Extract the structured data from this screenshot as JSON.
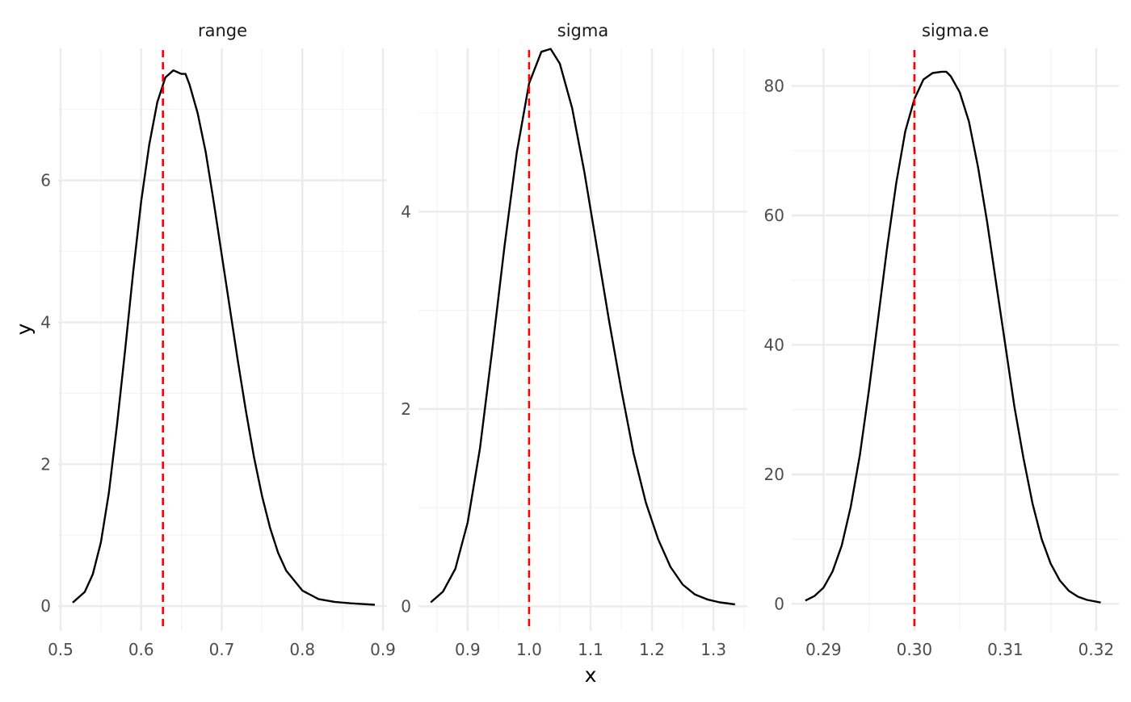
{
  "chart_data": {
    "type": "line",
    "xlabel": "x",
    "ylabel": "y",
    "grid": true,
    "legend": "none",
    "colors": {
      "density": "#000000",
      "reference_line": "#ff0000",
      "grid_major": "#ebebeb",
      "grid_minor": "#f4f4f4"
    },
    "panels": [
      {
        "title": "range",
        "xlim": [
          0.497,
          0.905
        ],
        "ylim": [
          -0.35,
          7.95
        ],
        "xticks": [
          0.5,
          0.6,
          0.7,
          0.8,
          0.9
        ],
        "xtick_labels": [
          "0.5",
          "0.6",
          "0.7",
          "0.8",
          "0.9"
        ],
        "xminor": [
          0.55,
          0.65,
          0.75,
          0.85
        ],
        "yticks": [
          0,
          2,
          4,
          6
        ],
        "ytick_labels": [
          "0",
          "2",
          "4",
          "6"
        ],
        "yminor": [
          1,
          3,
          5,
          7
        ],
        "reference_x": 0.627,
        "x": [
          0.515,
          0.53,
          0.54,
          0.55,
          0.56,
          0.57,
          0.58,
          0.59,
          0.6,
          0.61,
          0.62,
          0.63,
          0.64,
          0.65,
          0.655,
          0.66,
          0.67,
          0.68,
          0.69,
          0.7,
          0.71,
          0.72,
          0.73,
          0.74,
          0.75,
          0.76,
          0.77,
          0.78,
          0.8,
          0.82,
          0.84,
          0.86,
          0.89
        ],
        "y": [
          0.05,
          0.2,
          0.45,
          0.9,
          1.6,
          2.55,
          3.6,
          4.7,
          5.7,
          6.5,
          7.1,
          7.45,
          7.55,
          7.5,
          7.5,
          7.35,
          6.95,
          6.4,
          5.7,
          4.95,
          4.2,
          3.45,
          2.75,
          2.1,
          1.55,
          1.1,
          0.75,
          0.5,
          0.22,
          0.1,
          0.06,
          0.04,
          0.02
        ]
      },
      {
        "title": "sigma",
        "xlim": [
          0.82,
          1.355
        ],
        "ylim": [
          -0.25,
          5.72
        ],
        "xticks": [
          0.9,
          1.0,
          1.1,
          1.2,
          1.3
        ],
        "xtick_labels": [
          "0.9",
          "1.0",
          "1.1",
          "1.2",
          "1.3"
        ],
        "xminor": [
          0.85,
          0.95,
          1.05,
          1.15,
          1.25,
          1.35
        ],
        "yticks": [
          0,
          2,
          4
        ],
        "ytick_labels": [
          "0",
          "2",
          "4"
        ],
        "yminor": [
          1,
          3,
          5
        ],
        "reference_x": 1.0,
        "x": [
          0.84,
          0.86,
          0.88,
          0.9,
          0.92,
          0.94,
          0.96,
          0.98,
          1.0,
          1.02,
          1.035,
          1.05,
          1.07,
          1.09,
          1.11,
          1.13,
          1.15,
          1.17,
          1.19,
          1.21,
          1.23,
          1.25,
          1.27,
          1.29,
          1.31,
          1.335
        ],
        "y": [
          0.04,
          0.15,
          0.38,
          0.85,
          1.6,
          2.6,
          3.65,
          4.6,
          5.3,
          5.62,
          5.65,
          5.5,
          5.05,
          4.4,
          3.65,
          2.9,
          2.2,
          1.55,
          1.05,
          0.68,
          0.4,
          0.22,
          0.12,
          0.07,
          0.04,
          0.02
        ]
      },
      {
        "title": "sigma.e",
        "xlim": [
          0.2865,
          0.3225
        ],
        "ylim": [
          -4.2,
          86.8
        ],
        "xticks": [
          0.29,
          0.3,
          0.31,
          0.32
        ],
        "xtick_labels": [
          "0.29",
          "0.30",
          "0.31",
          "0.32"
        ],
        "xminor": [
          0.295,
          0.305,
          0.315
        ],
        "yticks": [
          0,
          20,
          40,
          60,
          80
        ],
        "ytick_labels": [
          "0",
          "20",
          "40",
          "60",
          "80"
        ],
        "yminor": [
          10,
          30,
          50,
          70
        ],
        "reference_x": 0.3,
        "x": [
          0.288,
          0.289,
          0.29,
          0.291,
          0.292,
          0.293,
          0.294,
          0.295,
          0.296,
          0.297,
          0.298,
          0.299,
          0.3,
          0.301,
          0.302,
          0.303,
          0.3035,
          0.304,
          0.305,
          0.306,
          0.307,
          0.308,
          0.309,
          0.31,
          0.311,
          0.312,
          0.313,
          0.314,
          0.315,
          0.316,
          0.317,
          0.318,
          0.319,
          0.3205
        ],
        "y": [
          0.5,
          1.2,
          2.5,
          5,
          9,
          15,
          23,
          33,
          44,
          55,
          65,
          73,
          78,
          81,
          82,
          82.2,
          82.2,
          81.5,
          79,
          74.5,
          67.5,
          59,
          49.5,
          40,
          30.5,
          22.5,
          15.5,
          10,
          6.2,
          3.6,
          2,
          1.1,
          0.6,
          0.2
        ]
      }
    ]
  }
}
